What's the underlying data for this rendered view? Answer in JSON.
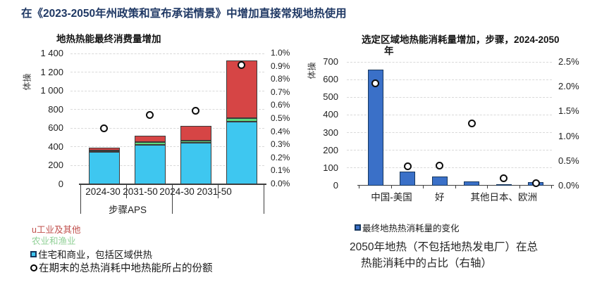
{
  "page": {
    "title": "在《2023-2050年州政策和宣布承诺情景》中增加直接常规地热使用"
  },
  "chart_data": [
    {
      "type": "bar",
      "subtype": "stacked-with-percent-markers",
      "title": "地热热能最终消费量增加",
      "ylabel": "体操",
      "ylim": [
        0,
        1400
      ],
      "ytick_step": 200,
      "y2lim": [
        0,
        1.0
      ],
      "y2tick_step": 0.1,
      "y2format": "percent",
      "grid": "dashed-horizontal",
      "categories": [
        "2024-30",
        "2031-50",
        "2024-30",
        "2031-50"
      ],
      "x_labels": [
        {
          "label": "2024-30",
          "slots": [
            0,
            0
          ]
        },
        {
          "label": "2031-50",
          "slots": [
            1,
            1
          ]
        },
        {
          "label": "2024-30",
          "slots": [
            2,
            2
          ]
        },
        {
          "label": "2031-50",
          "slots": [
            3,
            3
          ]
        }
      ],
      "group_label": "步骤APS",
      "bar_border": "#3b3b3b",
      "series": [
        {
          "name": "住宅和商业，包括区域供热",
          "color": "#3ec7f0",
          "values": [
            350,
            425,
            445,
            670
          ]
        },
        {
          "name": "农业和渔业",
          "color": "#5fd97e",
          "values": [
            15,
            25,
            25,
            40
          ]
        },
        {
          "name": "工业及其他",
          "color": "#d64545",
          "values": [
            28,
            70,
            155,
            615
          ]
        }
      ],
      "totals": [
        393,
        520,
        625,
        1325
      ],
      "markers": {
        "name": "在期末的总热消耗中地热能所占的份额",
        "axis": "right",
        "values_pct": [
          0.43,
          0.53,
          0.56,
          0.91
        ]
      },
      "legend": [
        {
          "label": "u工业及其他",
          "text_color": "#c0504d",
          "bullet": "none"
        },
        {
          "label": "农业和渔业",
          "text_color": "#90d096",
          "bullet": "none"
        },
        {
          "label": "住宅和商业，包括区域供热",
          "text_color": "#1a1a1a",
          "bullet": "square-cyan"
        },
        {
          "label": "在期末的总热消耗中地热能所占的份额",
          "text_color": "#1a1a1a",
          "bullet": "circle"
        }
      ]
    },
    {
      "type": "bar",
      "subtype": "single-series-with-percent-markers",
      "title_lines": [
        "选定区域地热能消耗量增加，步骤，2024-2050",
        "年"
      ],
      "ylabel": "体操",
      "ylim": [
        0,
        700
      ],
      "ytick_step": 100,
      "y2lim": [
        0,
        2.5
      ],
      "y2tick_step": 0.5,
      "y2format": "percent",
      "grid": "dashed-horizontal",
      "bar_border": "#17375e",
      "series": [
        {
          "name": "最终地热热消耗量的变化",
          "color": "#3a70c8",
          "colors": [
            "#3a70c8",
            "#3a70c8",
            "#3a70c8",
            "#3a70c8",
            "#1c2433",
            "#3a70c8"
          ],
          "values": [
            655,
            80,
            50,
            25,
            8,
            20
          ]
        }
      ],
      "x_labels": [
        {
          "label": "中国-美国",
          "slots": [
            0,
            1
          ]
        },
        {
          "label": "好",
          "slots": [
            2,
            2
          ]
        },
        {
          "label": "其他日本、欧洲",
          "slots": [
            3,
            5
          ]
        }
      ],
      "markers": {
        "name": "2050年地热（不包括地热发电厂）在总热能消耗中的占比（右轴）",
        "axis": "right",
        "values_pct": [
          2.07,
          0.39,
          0.41,
          1.26,
          0.15,
          0.05
        ]
      },
      "legend": [
        {
          "label": "最终地热热消耗量的变化",
          "text_color": "#1a1a1a",
          "bullet": "square-navy"
        }
      ],
      "caption_lines": [
        "2050年地热（不包括地热发电厂）在总",
        "热能消耗中的占比（右轴）"
      ]
    }
  ],
  "colors": {
    "page_title": "#1f3864",
    "residential": "#3ec7f0",
    "agriculture": "#5fd97e",
    "industry": "#d64545",
    "regional_bar": "#3a70c8",
    "grid": "#d9d9d9",
    "axis": "#3f3f3f"
  }
}
